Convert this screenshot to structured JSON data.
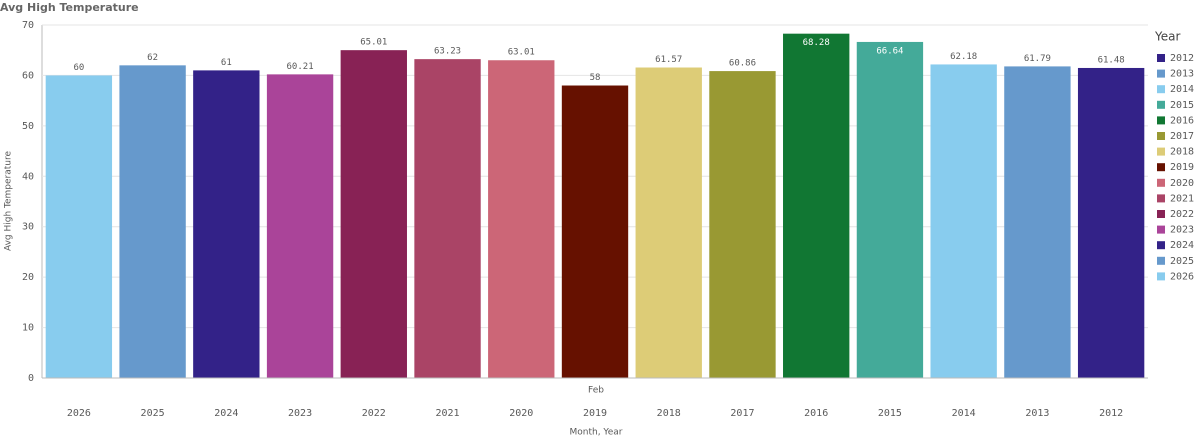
{
  "chart_data": {
    "type": "bar",
    "title": "Avg High Temperature",
    "y_label": "Avg High Temperature",
    "x_label": "Month, Year",
    "group_label": "Feb",
    "categories": [
      "2026",
      "2025",
      "2024",
      "2023",
      "2022",
      "2021",
      "2020",
      "2019",
      "2018",
      "2017",
      "2016",
      "2015",
      "2014",
      "2013",
      "2012"
    ],
    "values": [
      60,
      62,
      61,
      60.21,
      65.01,
      63.23,
      63.01,
      58,
      61.57,
      60.86,
      68.28,
      66.64,
      62.18,
      61.79,
      61.48
    ],
    "ylim": [
      0,
      70
    ],
    "yticks": [
      0,
      10,
      20,
      30,
      40,
      50,
      60,
      70
    ],
    "grid": true,
    "legend": {
      "title": "Year",
      "position": "right",
      "items": [
        {
          "name": "2012",
          "color": "#332288"
        },
        {
          "name": "2013",
          "color": "#6699cc"
        },
        {
          "name": "2014",
          "color": "#88ccee"
        },
        {
          "name": "2015",
          "color": "#44aa99"
        },
        {
          "name": "2016",
          "color": "#117733"
        },
        {
          "name": "2017",
          "color": "#999933"
        },
        {
          "name": "2018",
          "color": "#ddcc77"
        },
        {
          "name": "2019",
          "color": "#661100"
        },
        {
          "name": "2020",
          "color": "#cc6677"
        },
        {
          "name": "2021",
          "color": "#aa4466"
        },
        {
          "name": "2022",
          "color": "#882255"
        },
        {
          "name": "2023",
          "color": "#aa4499"
        },
        {
          "name": "2024",
          "color": "#332288"
        },
        {
          "name": "2025",
          "color": "#6699cc"
        },
        {
          "name": "2026",
          "color": "#88ccee"
        }
      ]
    }
  }
}
